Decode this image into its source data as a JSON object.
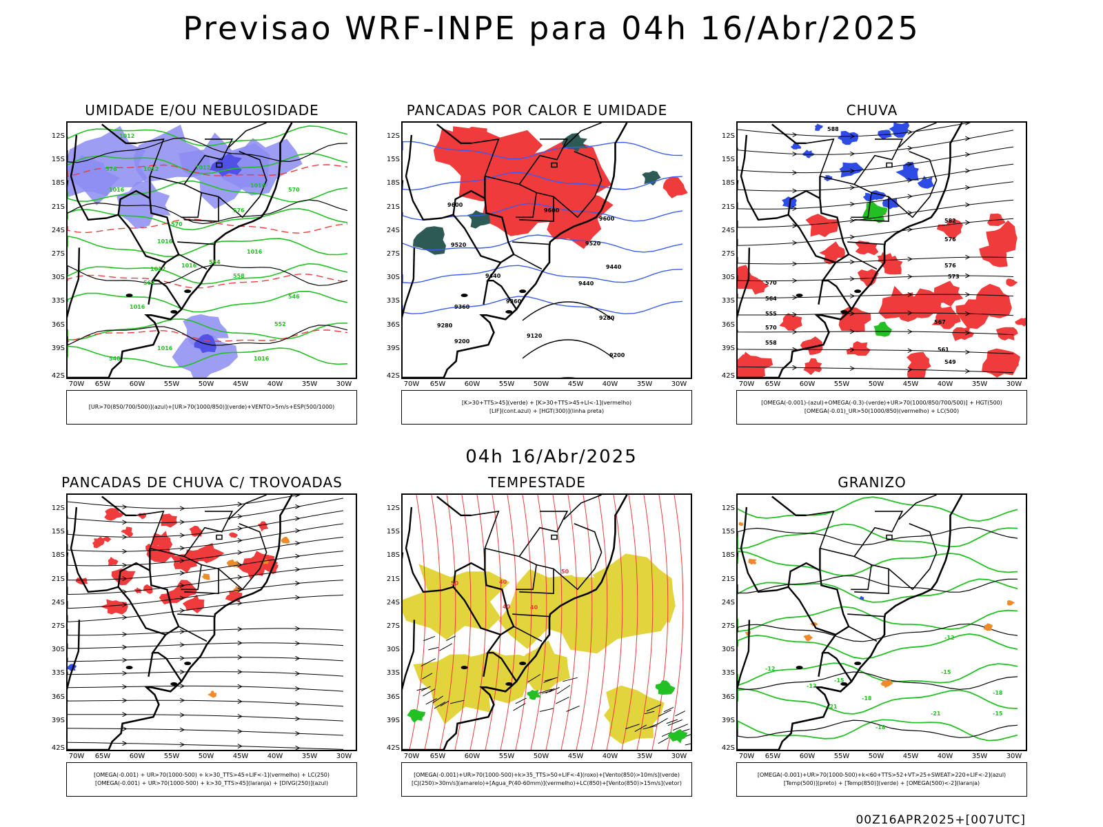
{
  "title": "Previsao WRF-INPE  para 04h 16/Abr/2025",
  "mid_title": "04h 16/Abr/2025",
  "footer": "00Z16APR2025+[007UTC]",
  "axes": {
    "lat_labels": [
      "12S",
      "15S",
      "18S",
      "21S",
      "24S",
      "27S",
      "30S",
      "33S",
      "36S",
      "39S",
      "42S"
    ],
    "lon_labels": [
      "70W",
      "65W",
      "60W",
      "55W",
      "50W",
      "45W",
      "40W",
      "35W",
      "30W"
    ]
  },
  "chart_data": [
    {
      "type": "heatmap",
      "title": "UMIDADE E/OU NEBULOSIDADE",
      "legend": [
        "[UR>70(850/700/500)](azul)+[UR>70(1000/850)](verde)+VENTO>5m/s+ESP(500/1000)"
      ],
      "fill_color": "#7b7bf0",
      "contour_color": "#22c022",
      "contour_labels": [
        "1012",
        "1012",
        "1012",
        "1016",
        "1016",
        "1016",
        "1012",
        "1016",
        "1016",
        "1016",
        "1016",
        "1016",
        "576",
        "576",
        "570",
        "570",
        "564",
        "564",
        "558",
        "552",
        "546",
        "540"
      ]
    },
    {
      "type": "heatmap",
      "title": "PANCADAS POR CALOR E UMIDADE",
      "legend": [
        "[K>30+TTS>45](verde) + [K>30+TTS>45+LI<-1](vermelho)",
        "[LIF](cont.azul) + [HGT(300)](linha preta)"
      ],
      "fill_color": "#ee3b3b",
      "contour_color": "#3a5cf0",
      "contour_labels": [
        "9600",
        "9600",
        "9600",
        "9520",
        "9520",
        "9440",
        "9440",
        "9440",
        "9360",
        "9360",
        "9280",
        "9280",
        "9200",
        "9200",
        "9120"
      ]
    },
    {
      "type": "heatmap",
      "title": "CHUVA",
      "legend": [
        "[OMEGA(-0.001)-(azul)+OMEGA(-0.3)-(verde)+UR>70(1000/850/700/500)] + HGT(500)",
        "[OMEGA(-0.01)_UR>50(1000/850)(vermelho) + LC(500)"
      ],
      "fill_color": "#ee3b3b",
      "contour_color": "#000000",
      "contour_labels": [
        "588",
        "582",
        "576",
        "576",
        "570",
        "573",
        "567",
        "561",
        "555",
        "564",
        "570",
        "558",
        "549"
      ]
    },
    {
      "type": "heatmap",
      "title": "PANCADAS DE CHUVA C/ TROVOADAS",
      "legend": [
        "[OMEGA(-0.001) + UR>70(1000-500) + k>30_TTS>45+LIF<-1](vermelho) + LC(250)",
        "[OMEGA(-0.001) + UR>70(1000-500) + k>30_TTS>45](laranja) + [DIVG(250)](azul)"
      ],
      "fill_color": "#ee3b3b",
      "contour_color": "#000000",
      "contour_labels": []
    },
    {
      "type": "heatmap",
      "title": "TEMPESTADE",
      "legend": [
        "[OMEGA(-0.001)+UR>70(1000-500)+k>35_TTS>50+LIF<-4](roxo)+[Vento(850)>10m/s](verde)",
        "[CJ(250)>30m/s](amarelo)+[Agua_P(40-60mm)](vermelho)+LC(850)+[Vento(850)>15m/s](vetor)"
      ],
      "fill_color": "#e0d23a",
      "contour_color": "#ee3b3b",
      "contour_labels": [
        "50",
        "40",
        "40",
        "40",
        "50"
      ]
    },
    {
      "type": "heatmap",
      "title": "GRANIZO",
      "legend": [
        "[OMEGA(-0.001)+UR>70(1000-500)+k<60+TTS>52+VT>25+SWEAT>220+LIF<-2](azul)",
        "[Temp(500)](preto) + [Temp(850)](verde) + [OMEGA(500)<-2](laranja)"
      ],
      "fill_color": "#ee8a2a",
      "contour_color": "#22c022",
      "contour_labels": [
        "-12",
        "-12",
        "-12",
        "-15",
        "-15",
        "-18",
        "-18",
        "-18",
        "-21",
        "-21",
        "-15"
      ]
    }
  ]
}
